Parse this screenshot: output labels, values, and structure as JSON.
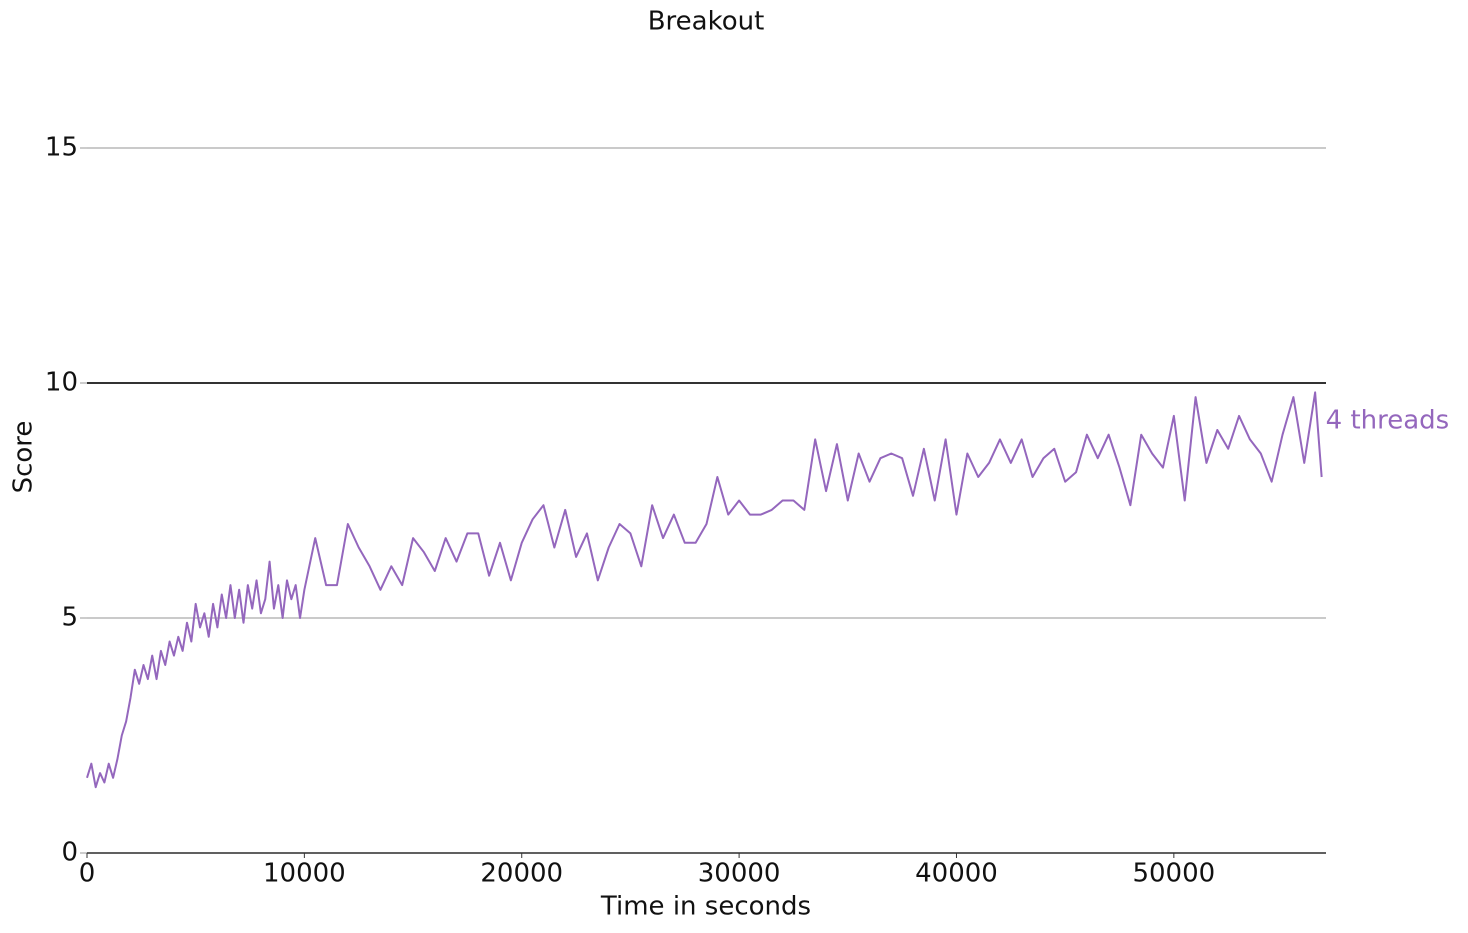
{
  "chart_data": {
    "type": "line",
    "title": "Breakout",
    "xlabel": "Time in seconds",
    "ylabel": "Score",
    "x": [
      0,
      200,
      400,
      600,
      800,
      1000,
      1200,
      1400,
      1600,
      1800,
      2000,
      2200,
      2400,
      2600,
      2800,
      3000,
      3200,
      3400,
      3600,
      3800,
      4000,
      4200,
      4400,
      4600,
      4800,
      5000,
      5200,
      5400,
      5600,
      5800,
      6000,
      6200,
      6400,
      6600,
      6800,
      7000,
      7200,
      7400,
      7600,
      7800,
      8000,
      8200,
      8400,
      8600,
      8800,
      9000,
      9200,
      9400,
      9600,
      9800,
      10000,
      10500,
      11000,
      11500,
      12000,
      12500,
      13000,
      13500,
      14000,
      14500,
      15000,
      15500,
      16000,
      16500,
      17000,
      17500,
      18000,
      18500,
      19000,
      19500,
      20000,
      20500,
      21000,
      21500,
      22000,
      22500,
      23000,
      23500,
      24000,
      24500,
      25000,
      25500,
      26000,
      26500,
      27000,
      27500,
      28000,
      28500,
      29000,
      29500,
      30000,
      30500,
      31000,
      31500,
      32000,
      32500,
      33000,
      33500,
      34000,
      34500,
      35000,
      35500,
      36000,
      36500,
      37000,
      37500,
      38000,
      38500,
      39000,
      39500,
      40000,
      40500,
      41000,
      41500,
      42000,
      42500,
      43000,
      43500,
      44000,
      44500,
      45000,
      45500,
      46000,
      46500,
      47000,
      47500,
      48000,
      48500,
      49000,
      49500,
      50000,
      50500,
      51000,
      51500,
      52000,
      52500,
      53000,
      53500,
      54000,
      54500,
      55000,
      55500,
      56000,
      56500,
      56800
    ],
    "series": [
      {
        "name": "4 threads",
        "color": "#9467bd",
        "values": [
          1.6,
          1.9,
          1.4,
          1.7,
          1.5,
          1.9,
          1.6,
          2.0,
          2.5,
          2.8,
          3.3,
          3.9,
          3.6,
          4.0,
          3.7,
          4.2,
          3.7,
          4.3,
          4.0,
          4.5,
          4.2,
          4.6,
          4.3,
          4.9,
          4.5,
          5.3,
          4.8,
          5.1,
          4.6,
          5.3,
          4.8,
          5.5,
          5.0,
          5.7,
          5.0,
          5.6,
          4.9,
          5.7,
          5.2,
          5.8,
          5.1,
          5.4,
          6.2,
          5.2,
          5.7,
          5.0,
          5.8,
          5.4,
          5.7,
          5.0,
          5.6,
          6.7,
          5.7,
          5.7,
          7.0,
          6.5,
          6.1,
          5.6,
          6.1,
          5.7,
          6.7,
          6.4,
          6.0,
          6.7,
          6.2,
          6.8,
          6.8,
          5.9,
          6.6,
          5.8,
          6.6,
          7.1,
          7.4,
          6.5,
          7.3,
          6.3,
          6.8,
          5.8,
          6.5,
          7.0,
          6.8,
          6.1,
          7.4,
          6.7,
          7.2,
          6.6,
          6.6,
          7.0,
          8.0,
          7.2,
          7.5,
          7.2,
          7.2,
          7.3,
          7.5,
          7.5,
          7.3,
          8.8,
          7.7,
          8.7,
          7.5,
          8.5,
          7.9,
          8.4,
          8.5,
          8.4,
          7.6,
          8.6,
          7.5,
          8.8,
          7.2,
          8.5,
          8.0,
          8.3,
          8.8,
          8.3,
          8.8,
          8.0,
          8.4,
          8.6,
          7.9,
          8.1,
          8.9,
          8.4,
          8.9,
          8.2,
          7.4,
          8.9,
          8.5,
          8.2,
          9.3,
          7.5,
          9.7,
          8.3,
          9.0,
          8.6,
          9.3,
          8.8,
          8.5,
          7.9,
          8.9,
          9.7,
          8.3,
          9.8,
          8.0
        ]
      }
    ],
    "xlim": [
      0,
      57000
    ],
    "ylim": [
      0,
      15
    ],
    "xticks": [
      0,
      10000,
      20000,
      30000,
      40000,
      50000
    ],
    "yticks": [
      0,
      5,
      10,
      15
    ],
    "reference_line": 10,
    "grid": true
  }
}
